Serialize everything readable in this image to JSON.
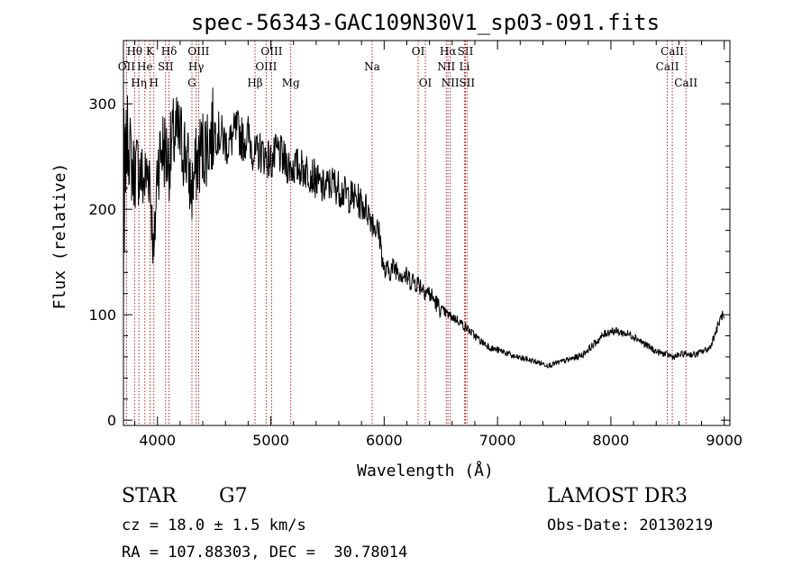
{
  "chart_data": {
    "type": "line",
    "title": "spec-56343-GAC109N30V1_sp03-091.fits",
    "xlabel": "Wavelength (Å)",
    "ylabel": "Flux (relative)",
    "xlim": [
      3700,
      9050
    ],
    "ylim": [
      -5,
      360
    ],
    "xticks": [
      4000,
      5000,
      6000,
      7000,
      8000,
      9000
    ],
    "yticks": [
      0,
      100,
      200,
      300
    ],
    "xtick_labels": [
      "4000",
      "5000",
      "6000",
      "7000",
      "8000",
      "9000"
    ],
    "ytick_labels": [
      "0",
      "100",
      "200",
      "300"
    ],
    "series": [
      {
        "name": "flux",
        "x": [
          3700,
          3740,
          3780,
          3830,
          3880,
          3930,
          3968,
          4000,
          4050,
          4100,
          4150,
          4200,
          4250,
          4300,
          4340,
          4380,
          4450,
          4500,
          4560,
          4620,
          4700,
          4760,
          4800,
          4861,
          4900,
          4960,
          5007,
          5060,
          5120,
          5180,
          5250,
          5350,
          5450,
          5550,
          5650,
          5750,
          5850,
          5960,
          6000,
          6100,
          6200,
          6300,
          6400,
          6500,
          6563,
          6650,
          6750,
          6850,
          6950,
          7050,
          7150,
          7250,
          7350,
          7450,
          7550,
          7650,
          7750,
          7850,
          7950,
          8000,
          8100,
          8200,
          8300,
          8400,
          8500,
          8550,
          8650,
          8750,
          8800,
          8870,
          8930,
          8980,
          9000
        ],
        "y": [
          230,
          270,
          235,
          240,
          225,
          240,
          150,
          245,
          260,
          245,
          270,
          265,
          255,
          215,
          240,
          255,
          265,
          275,
          270,
          260,
          275,
          265,
          270,
          250,
          255,
          250,
          245,
          255,
          245,
          240,
          240,
          235,
          220,
          225,
          215,
          210,
          200,
          175,
          140,
          145,
          135,
          130,
          120,
          105,
          100,
          95,
          85,
          75,
          68,
          65,
          60,
          58,
          55,
          52,
          55,
          58,
          62,
          72,
          82,
          85,
          83,
          80,
          72,
          65,
          62,
          60,
          63,
          62,
          65,
          68,
          85,
          100,
          95
        ]
      }
    ],
    "lines": [
      {
        "name": "OII",
        "x": 3727,
        "row": 2
      },
      {
        "name": "Hθ",
        "x": 3798,
        "row": 1
      },
      {
        "name": "Hη",
        "x": 3836,
        "row": 3
      },
      {
        "name": "He",
        "x": 3889,
        "row": 2
      },
      {
        "name": "K",
        "x": 3934,
        "row": 1
      },
      {
        "name": "H",
        "x": 3968,
        "row": 3
      },
      {
        "name": "SII",
        "x": 4072,
        "row": 2
      },
      {
        "name": "Hδ",
        "x": 4102,
        "row": 1
      },
      {
        "name": "G",
        "x": 4304,
        "row": 3
      },
      {
        "name": "Hγ",
        "x": 4341,
        "row": 2
      },
      {
        "name": "OIII",
        "x": 4363,
        "row": 1
      },
      {
        "name": "Hβ",
        "x": 4861,
        "row": 3
      },
      {
        "name": "OIII",
        "x": 4959,
        "row": 2
      },
      {
        "name": "OIII",
        "x": 5007,
        "row": 1
      },
      {
        "name": "Mg",
        "x": 5176,
        "row": 3
      },
      {
        "name": "Na",
        "x": 5894,
        "row": 2
      },
      {
        "name": "OI",
        "x": 6300,
        "row": 1
      },
      {
        "name": "OI",
        "x": 6363,
        "row": 3
      },
      {
        "name": "NII",
        "x": 6548,
        "row": 2
      },
      {
        "name": "Hα",
        "x": 6563,
        "row": 1
      },
      {
        "name": "NII",
        "x": 6583,
        "row": 3
      },
      {
        "name": "Li",
        "x": 6708,
        "row": 2
      },
      {
        "name": "SII",
        "x": 6717,
        "row": 1
      },
      {
        "name": "SII",
        "x": 6731,
        "row": 3
      },
      {
        "name": "CaII",
        "x": 8498,
        "row": 2
      },
      {
        "name": "CaII",
        "x": 8542,
        "row": 1
      },
      {
        "name": "CaII",
        "x": 8662,
        "row": 3
      }
    ]
  },
  "info": {
    "object_class": "STAR",
    "subclass": "G7",
    "redshift": "cz = 18.0 ± 1.5 km/s",
    "coords": "RA = 107.88303, DEC =  30.78014",
    "survey": "LAMOST DR3",
    "obs_date": "Obs-Date: 20130219"
  },
  "colors": {
    "line": "#000000",
    "marker": "#b22222"
  }
}
